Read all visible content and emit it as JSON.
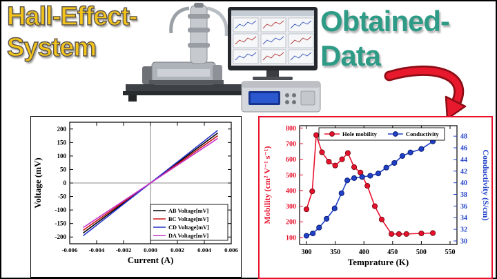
{
  "titles": {
    "left_line1": "Hall-Effect-",
    "left_line2": "System",
    "right_line1": "Obtained-",
    "right_line2": "Data"
  },
  "colors": {
    "left_title": "#f4c41a",
    "right_title": "#2e9b86",
    "arrow": "#e8192d",
    "mobility_red": "#e8112d",
    "conductivity_blue": "#2040c8",
    "right_chart_border": "#e8112d"
  },
  "chart_data": [
    {
      "type": "line",
      "id": "iv-curves",
      "xlabel": "Current (A)",
      "ylabel": "Voltage (mV)",
      "xlim": [
        -0.006,
        0.006
      ],
      "ylim": [
        -225,
        225
      ],
      "xticks": [
        [
          -0.006,
          "-0.006"
        ],
        [
          -0.004,
          "-0.004"
        ],
        [
          -0.002,
          "-0.002"
        ],
        [
          0,
          "0.000"
        ],
        [
          0.002,
          "0.002"
        ],
        [
          0.004,
          "0.004"
        ],
        [
          0.006,
          "0.006"
        ]
      ],
      "yticks": [
        [
          -200,
          "-200"
        ],
        [
          -150,
          "-150"
        ],
        [
          -100,
          "-100"
        ],
        [
          -50,
          "-50"
        ],
        [
          0,
          "0"
        ],
        [
          50,
          "50"
        ],
        [
          100,
          "100"
        ],
        [
          150,
          "150"
        ],
        [
          200,
          "200"
        ]
      ],
      "grid": false,
      "zero_lines": true,
      "legend_position": "bottom-right",
      "series": [
        {
          "name": "AB Voltage[mV]",
          "color": "#000000",
          "x": [
            -0.005,
            0.005
          ],
          "y": [
            -185,
            185
          ]
        },
        {
          "name": "BC Voltage[mV]",
          "color": "#c81414",
          "x": [
            -0.005,
            0.005
          ],
          "y": [
            -175,
            175
          ]
        },
        {
          "name": "CD Voltage[mV]",
          "color": "#2432c8",
          "x": [
            -0.005,
            0.005
          ],
          "y": [
            -195,
            195
          ]
        },
        {
          "name": "DA Voltage[mV]",
          "color": "#c832c8",
          "x": [
            -0.005,
            0.005
          ],
          "y": [
            -165,
            165
          ]
        }
      ]
    },
    {
      "type": "line",
      "id": "mobility-conductivity",
      "xlabel": "Temprature (K)",
      "ylabel_left": "Mobility (cm² V⁻¹ s⁻¹)",
      "ylabel_right": "Conductivity (S/cm)",
      "xlim": [
        288,
        562
      ],
      "ylim_left": [
        55,
        815
      ],
      "ylim_right": [
        29.4,
        49.8
      ],
      "xticks": [
        300,
        350,
        400,
        450,
        500,
        550
      ],
      "yticks_left": [
        100,
        200,
        300,
        400,
        500,
        600,
        700,
        800
      ],
      "yticks_right": [
        30,
        32,
        34,
        36,
        38,
        40,
        42,
        44,
        46,
        48
      ],
      "grid": false,
      "legend_position": "top-center",
      "series": [
        {
          "name": "Hole mobility",
          "axis": "left",
          "color": "#e8112d",
          "edge": "#7a0a12",
          "x": [
            300,
            310,
            317,
            327,
            339,
            350,
            362,
            372,
            383,
            394,
            406,
            419,
            431,
            448,
            461,
            474,
            500,
            520
          ],
          "y": [
            280,
            395,
            755,
            645,
            585,
            560,
            600,
            640,
            550,
            515,
            430,
            300,
            215,
            122,
            122,
            122,
            126,
            128
          ]
        },
        {
          "name": "Conductivity",
          "axis": "right",
          "color": "#2040c8",
          "edge": "#0c1f70",
          "x": [
            300,
            311,
            322,
            335,
            349,
            361,
            371,
            383,
            397,
            411,
            425,
            439,
            453,
            467,
            481,
            500,
            520
          ],
          "y": [
            30.9,
            31.3,
            32.3,
            33.8,
            35.6,
            38.2,
            40.4,
            40.8,
            41.0,
            41.2,
            41.6,
            42.6,
            43.4,
            44.6,
            45.2,
            45.8,
            47.1
          ]
        }
      ]
    }
  ]
}
